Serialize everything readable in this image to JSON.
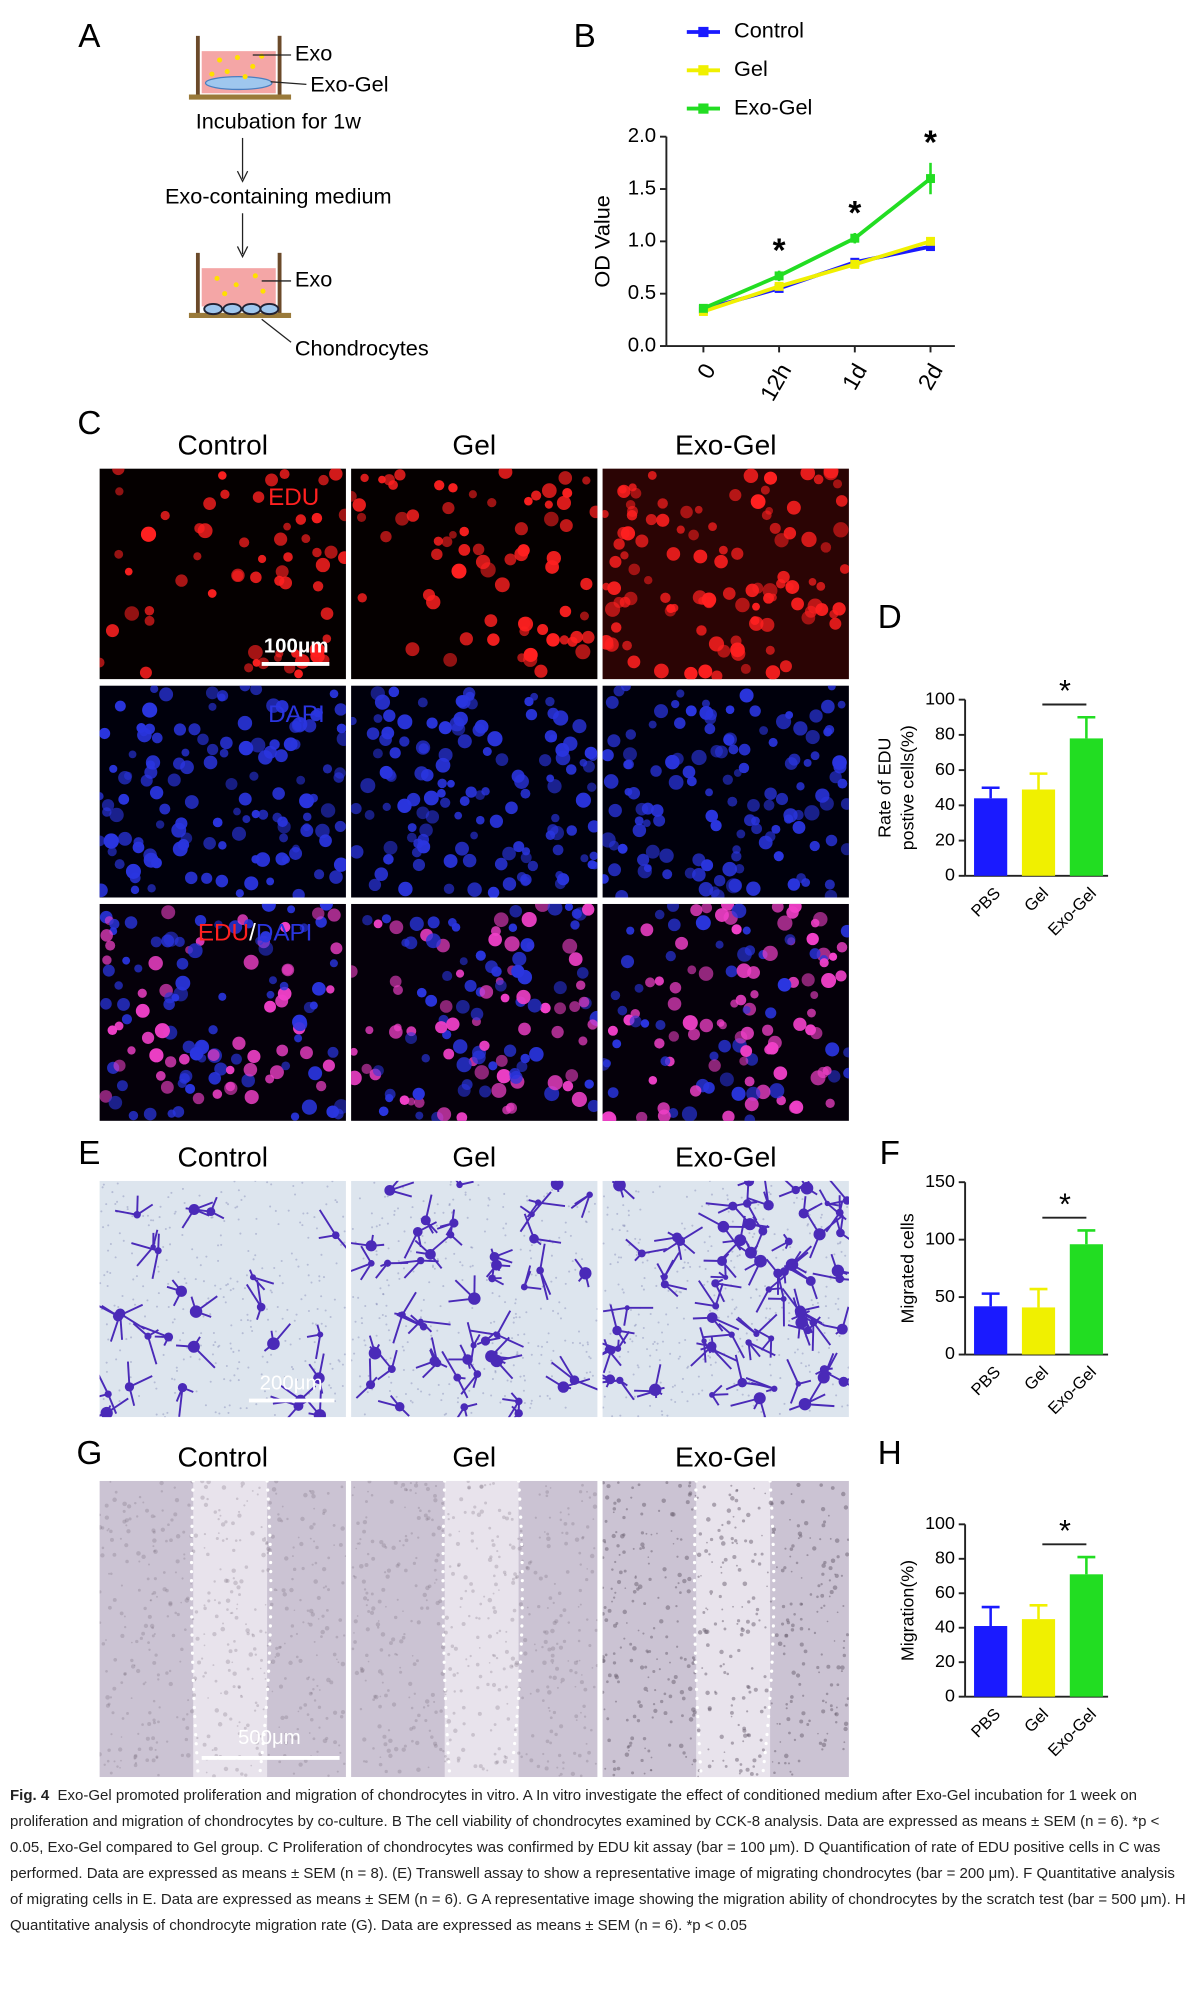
{
  "panel_labels": [
    "A",
    "B",
    "C",
    "D",
    "E",
    "F",
    "G",
    "H"
  ],
  "schematic": {
    "exo_top": "Exo",
    "exo_gel": "Exo-Gel",
    "step1": "Incubation for 1w",
    "step2": "Exo-containing medium",
    "exo_bottom": "Exo",
    "cells": "Chondrocytes"
  },
  "image_panels": {
    "C": {
      "columns": [
        "Control",
        "Gel",
        "Exo-Gel"
      ],
      "rows": [
        [
          "EDU"
        ],
        [
          "DAPI"
        ],
        [
          "EDU",
          "/",
          "DAPI"
        ]
      ],
      "scale_bar": "100μm"
    },
    "E": {
      "columns": [
        "Control",
        "Gel",
        "Exo-Gel"
      ],
      "scale_bar": "200μm"
    },
    "G": {
      "columns": [
        "Control",
        "Gel",
        "Exo-Gel"
      ],
      "scale_bar": "500μm"
    }
  },
  "chart_data": [
    {
      "type": "line",
      "ylabel": "OD Value",
      "categories": [
        "0",
        "12h",
        "1d",
        "2d"
      ],
      "ylim": [
        0,
        2.0
      ],
      "yticks": [
        {
          "value": 0,
          "label": "0.0"
        },
        0.5,
        {
          "value": 1,
          "label": "1.0"
        },
        1.5,
        {
          "value": 2,
          "label": "2.0"
        }
      ],
      "series": [
        {
          "name": "Control",
          "color": "#1a1aff",
          "values": [
            0.35,
            0.55,
            0.8,
            0.95
          ],
          "errors": [
            0.02,
            0.03,
            0.03,
            0.03
          ]
        },
        {
          "name": "Gel",
          "color": "#f0f000",
          "values": [
            0.33,
            0.57,
            0.78,
            1.0
          ],
          "errors": [
            0.02,
            0.03,
            0.03,
            0.03
          ]
        },
        {
          "name": "Exo-Gel",
          "color": "#22dd22",
          "values": [
            0.36,
            0.67,
            1.03,
            1.6
          ],
          "errors": [
            0.02,
            0.05,
            0.05,
            0.15
          ]
        }
      ],
      "annotations": [
        {
          "text": "*",
          "x": "12h"
        },
        {
          "text": "*",
          "x": "1d"
        },
        {
          "text": "*",
          "x": "2d"
        }
      ]
    },
    {
      "type": "bar",
      "ylabel": [
        "Rate of EDU",
        "postive cells(%)"
      ],
      "categories": [
        "PBS",
        "Gel",
        "Exo-Gel"
      ],
      "values": [
        44,
        49,
        78
      ],
      "errors": [
        6,
        9,
        12
      ],
      "colors": [
        "#1a1aff",
        "#f0f000",
        "#22dd22"
      ],
      "ylim": [
        0,
        100
      ],
      "yticks": [
        0,
        20,
        40,
        60,
        80,
        100
      ],
      "significance": {
        "text": "*",
        "from": "Gel",
        "to": "Exo-Gel"
      }
    },
    {
      "type": "bar",
      "ylabel": [
        "Migrated cells"
      ],
      "categories": [
        "PBS",
        "Gel",
        "Exo-Gel"
      ],
      "values": [
        42,
        41,
        96
      ],
      "errors": [
        11,
        16,
        12
      ],
      "colors": [
        "#1a1aff",
        "#f0f000",
        "#22dd22"
      ],
      "ylim": [
        0,
        150
      ],
      "yticks": [
        0,
        50,
        100,
        150
      ],
      "significance": {
        "text": "*",
        "from": "Gel",
        "to": "Exo-Gel"
      }
    },
    {
      "type": "bar",
      "ylabel": [
        "Migration(%)"
      ],
      "categories": [
        "PBS",
        "Gel",
        "Exo-Gel"
      ],
      "values": [
        41,
        45,
        71
      ],
      "errors": [
        11,
        8,
        10
      ],
      "colors": [
        "#1a1aff",
        "#f0f000",
        "#22dd22"
      ],
      "ylim": [
        0,
        100
      ],
      "yticks": [
        0,
        20,
        40,
        60,
        80,
        100
      ],
      "significance": {
        "text": "*",
        "from": "Gel",
        "to": "Exo-Gel"
      }
    }
  ],
  "caption": {
    "label": "Fig. 4",
    "text": "Exo-Gel promoted proliferation and migration of chondrocytes in vitro. A In vitro investigate the effect of conditioned medium after Exo-Gel incubation for 1 week on proliferation and migration of chondrocytes by co-culture. B The cell viability of chondrocytes examined by CCK-8 analysis. Data are expressed as means ± SEM (n = 6). *p < 0.05, Exo-Gel compared to Gel group. C Proliferation of chondrocytes was confirmed by EDU kit assay (bar = 100 μm). D Quantification of rate of EDU positive cells in C was performed. Data are expressed as means ± SEM (n = 8). (E) Transwell assay to show a representative image of migrating chondrocytes (bar = 200 μm). F Quantitative analysis of migrating cells in E. Data are expressed as means ± SEM (n = 6). G A representative image showing the migration ability of chondrocytes by the scratch test (bar = 500 μm). H Quantitative analysis of chondrocyte migration rate (G). Data are expressed as means ± SEM (n = 6). *p < 0.05"
  }
}
